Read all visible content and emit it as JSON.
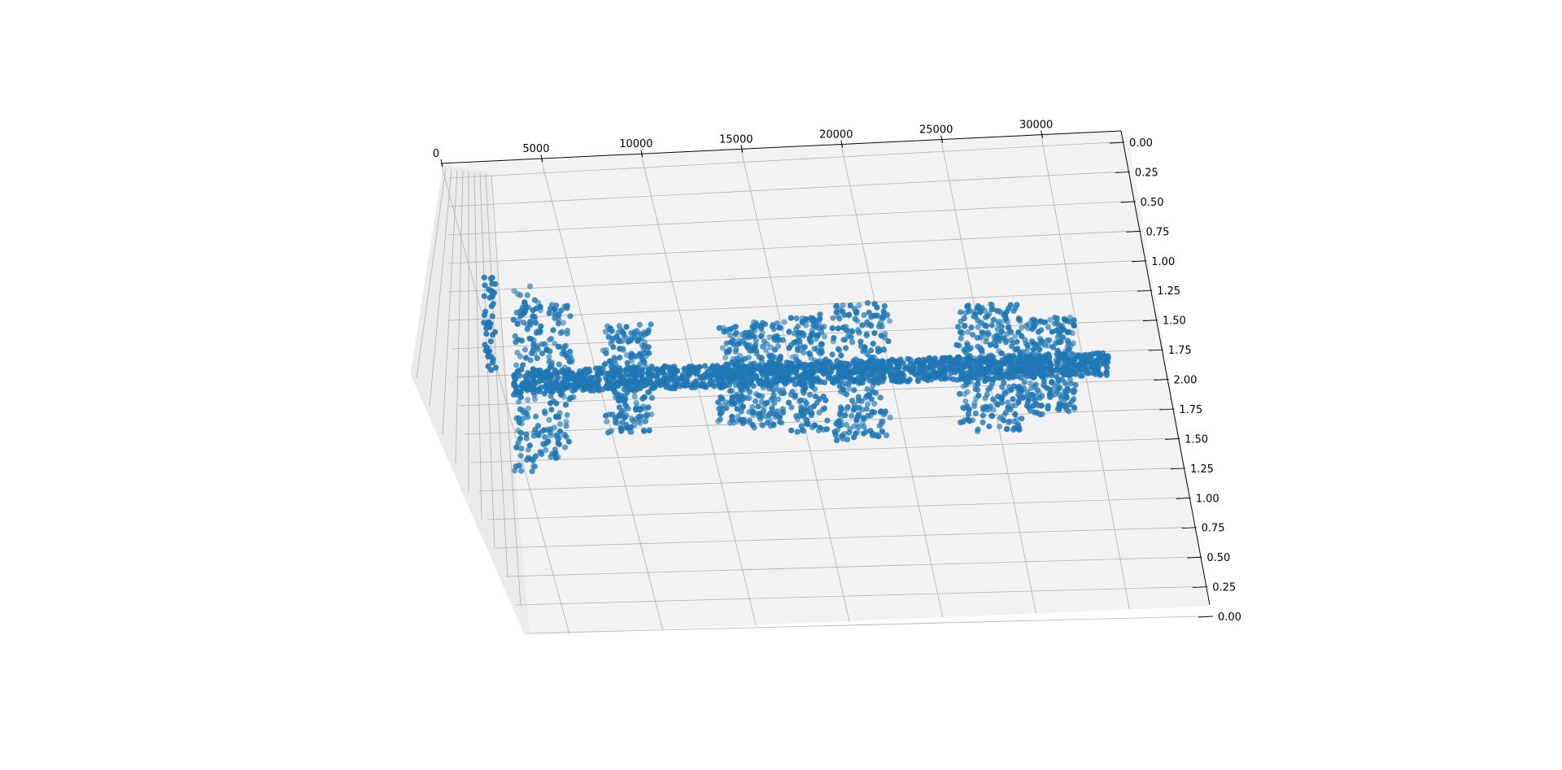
{
  "chart_data": {
    "type": "scatter",
    "projection": "3d",
    "title": "",
    "xlabel": "",
    "ylabel": "",
    "zlabel": "",
    "grid": true,
    "marker_color": "#1f77b4",
    "pane_color": "#f2f2f2",
    "grid_color": "#b0b0b0",
    "x_ticks": [
      0,
      5000,
      10000,
      15000,
      20000,
      25000,
      30000
    ],
    "x_tick_labels": [
      "0",
      "5000",
      "10000",
      "15000",
      "20000",
      "25000",
      "30000"
    ],
    "xlim": [
      0,
      34000
    ],
    "z_ticks_upper": [
      "0.00",
      "0.25",
      "0.50",
      "0.75",
      "1.00",
      "1.25",
      "1.50",
      "1.75",
      "2.00"
    ],
    "z_ticks_lower": [
      "1.75",
      "1.50",
      "1.25",
      "1.00",
      "0.75",
      "0.50",
      "0.25",
      "0.00"
    ],
    "zlim": [
      0,
      2
    ],
    "point_count_description": "dense cloud of ~34000 samples, baseline near the middle with bursts",
    "bursts": [
      {
        "x_start": 200,
        "x_end": 1800,
        "amplitude": 1.0
      },
      {
        "x_start": 1800,
        "x_end": 3500,
        "amplitude": 0.8
      },
      {
        "x_start": 5500,
        "x_end": 8000,
        "amplitude": 0.55
      },
      {
        "x_start": 12000,
        "x_end": 13500,
        "amplitude": 0.5
      },
      {
        "x_start": 13500,
        "x_end": 15500,
        "amplitude": 0.55
      },
      {
        "x_start": 16000,
        "x_end": 18000,
        "amplitude": 0.6
      },
      {
        "x_start": 18500,
        "x_end": 21500,
        "amplitude": 0.7
      },
      {
        "x_start": 25500,
        "x_end": 29000,
        "amplitude": 0.65
      },
      {
        "x_start": 29000,
        "x_end": 32000,
        "amplitude": 0.5
      }
    ]
  }
}
